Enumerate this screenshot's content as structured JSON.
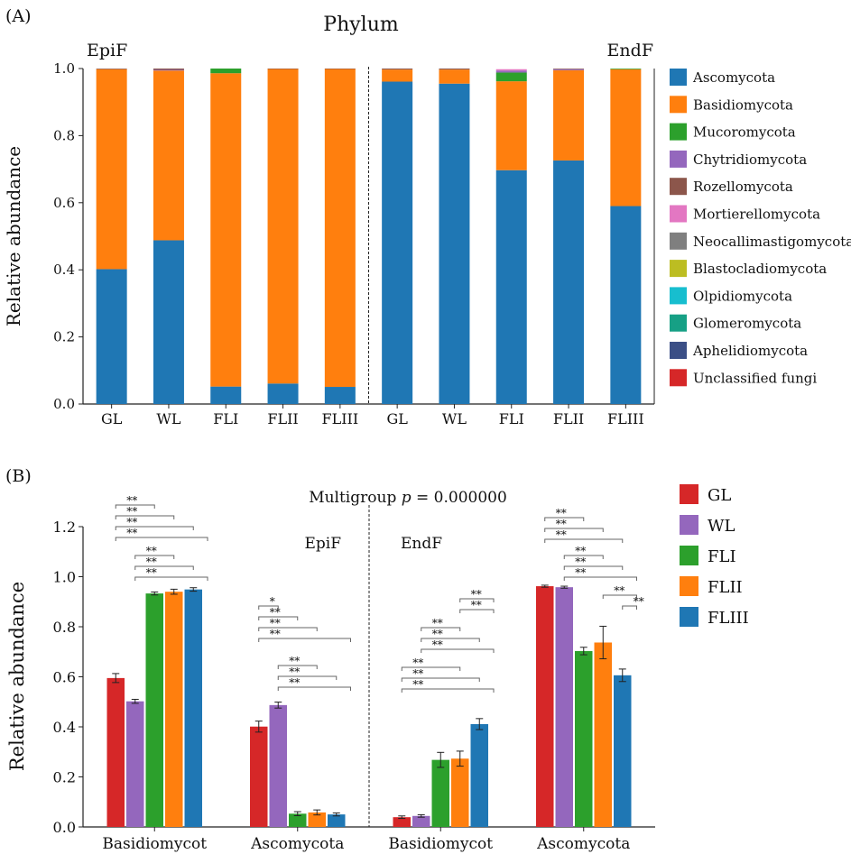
{
  "chart_data": [
    {
      "type": "bar",
      "stacked": true,
      "panel_label": "(A)",
      "title": "Phylum",
      "ylabel": "Relative abundance",
      "ylim": [
        0,
        1
      ],
      "yticks": [
        "0.0",
        "0.2",
        "0.4",
        "0.6",
        "0.8",
        "1.0"
      ],
      "groups": [
        {
          "name": "EpiF",
          "categories": [
            "GL",
            "WL",
            "FLI",
            "FLII",
            "FLIII"
          ]
        },
        {
          "name": "EndF",
          "categories": [
            "GL",
            "WL",
            "FLI",
            "FLII",
            "FLIII"
          ]
        }
      ],
      "legend": [
        {
          "name": "Ascomycota",
          "color": "#1f77b4"
        },
        {
          "name": "Basidiomycota",
          "color": "#ff7f0e"
        },
        {
          "name": "Mucoromycota",
          "color": "#2ca02c"
        },
        {
          "name": "Chytridiomycota",
          "color": "#9467bd"
        },
        {
          "name": "Rozellomycota",
          "color": "#8c564b"
        },
        {
          "name": "Mortierellomycota",
          "color": "#e377c2"
        },
        {
          "name": "Neocallimastigomycota",
          "color": "#7f7f7f"
        },
        {
          "name": "Blastocladiomycota",
          "color": "#bcbd22"
        },
        {
          "name": "Olpidiomycota",
          "color": "#17becf"
        },
        {
          "name": "Glomeromycota",
          "color": "#16a085"
        },
        {
          "name": "Aphelidiomycota",
          "color": "#3b4f86"
        },
        {
          "name": "Unclassified fungi",
          "color": "#d62728"
        }
      ],
      "bars": [
        {
          "group": "EpiF",
          "category": "GL",
          "segments": [
            0.402,
            0.596,
            0,
            0,
            0.002
          ]
        },
        {
          "group": "EpiF",
          "category": "WL",
          "segments": [
            0.488,
            0.506,
            0,
            0.002,
            0.004
          ]
        },
        {
          "group": "EpiF",
          "category": "FLI",
          "segments": [
            0.052,
            0.934,
            0.014
          ]
        },
        {
          "group": "EpiF",
          "category": "FLII",
          "segments": [
            0.061,
            0.938,
            0,
            0,
            0.001
          ]
        },
        {
          "group": "EpiF",
          "category": "FLIII",
          "segments": [
            0.051,
            0.948,
            0,
            0,
            0.001
          ]
        },
        {
          "group": "EndF",
          "category": "GL",
          "segments": [
            0.961,
            0.036,
            0,
            0,
            0.003
          ]
        },
        {
          "group": "EndF",
          "category": "WL",
          "segments": [
            0.955,
            0.042,
            0,
            0,
            0.003
          ]
        },
        {
          "group": "EndF",
          "category": "FLI",
          "segments": [
            0.697,
            0.265,
            0.026,
            0.006,
            0,
            0.004
          ]
        },
        {
          "group": "EndF",
          "category": "FLII",
          "segments": [
            0.726,
            0.269,
            0,
            0.003,
            0.002
          ]
        },
        {
          "group": "EndF",
          "category": "FLIII",
          "segments": [
            0.59,
            0.408,
            0.002
          ]
        }
      ]
    },
    {
      "type": "bar",
      "panel_label": "(B)",
      "title": "Multigroup",
      "title_p": "p",
      "title_value": " = 0.000000",
      "ylabel": "Relative abundance",
      "ylim": [
        0,
        1.2
      ],
      "yticks": [
        "0.0",
        "0.2",
        "0.4",
        "0.6",
        "0.8",
        "1.0",
        "1.2"
      ],
      "section_labels": [
        "EpiF",
        "EndF"
      ],
      "categories": [
        "Basidiomycot",
        "Ascomycota",
        "Basidiomycot",
        "Ascomycota"
      ],
      "series": [
        {
          "name": "GL",
          "color": "#d62728",
          "values": [
            0.595,
            0.401,
            0.039,
            0.962
          ],
          "errors": [
            0.018,
            0.022,
            0.005,
            0.004
          ]
        },
        {
          "name": "WL",
          "color": "#9467bd",
          "values": [
            0.502,
            0.487,
            0.044,
            0.958
          ],
          "errors": [
            0.008,
            0.012,
            0.005,
            0.004
          ]
        },
        {
          "name": "FLI",
          "color": "#2ca02c",
          "values": [
            0.933,
            0.053,
            0.268,
            0.703
          ],
          "errors": [
            0.006,
            0.008,
            0.03,
            0.015
          ]
        },
        {
          "name": "FLII",
          "color": "#ff7f0e",
          "values": [
            0.94,
            0.058,
            0.273,
            0.737
          ],
          "errors": [
            0.01,
            0.01,
            0.03,
            0.065
          ]
        },
        {
          "name": "FLIII",
          "color": "#1f77b4",
          "values": [
            0.949,
            0.05,
            0.411,
            0.606
          ],
          "errors": [
            0.007,
            0.006,
            0.022,
            0.025
          ]
        }
      ],
      "significance": [
        {
          "category": 0,
          "from": 0,
          "to": 2,
          "label": "**"
        },
        {
          "category": 0,
          "from": 0,
          "to": 3,
          "label": "**"
        },
        {
          "category": 0,
          "from": 0,
          "to": 4,
          "label": "**"
        },
        {
          "category": 0,
          "from": 0,
          "to": 5,
          "label": "**"
        },
        {
          "category": 0,
          "from": 1,
          "to": 3,
          "label": "**"
        },
        {
          "category": 0,
          "from": 1,
          "to": 4,
          "label": "**"
        },
        {
          "category": 0,
          "from": 1,
          "to": 5,
          "label": "**"
        },
        {
          "category": 1,
          "from": 0,
          "to": 1,
          "label": "*"
        },
        {
          "category": 1,
          "from": 0,
          "to": 2,
          "label": "**"
        },
        {
          "category": 1,
          "from": 0,
          "to": 3,
          "label": "**"
        },
        {
          "category": 1,
          "from": 0,
          "to": 5,
          "label": "**"
        },
        {
          "category": 1,
          "from": 1,
          "to": 3,
          "label": "**"
        },
        {
          "category": 1,
          "from": 1,
          "to": 4,
          "label": "**"
        },
        {
          "category": 1,
          "from": 1,
          "to": 5,
          "label": "**"
        },
        {
          "category": 2,
          "from": 3,
          "to": 5,
          "label": "**"
        },
        {
          "category": 2,
          "from": 3,
          "to": 5,
          "label": "**"
        },
        {
          "category": 2,
          "from": 1,
          "to": 3,
          "label": "**"
        },
        {
          "category": 2,
          "from": 1,
          "to": 4,
          "label": "**"
        },
        {
          "category": 2,
          "from": 1,
          "to": 5,
          "label": "**"
        },
        {
          "category": 2,
          "from": 0,
          "to": 3,
          "label": "**"
        },
        {
          "category": 2,
          "from": 0,
          "to": 4,
          "label": "**"
        },
        {
          "category": 2,
          "from": 0,
          "to": 5,
          "label": "**"
        },
        {
          "category": 3,
          "from": 0,
          "to": 2,
          "label": "**"
        },
        {
          "category": 3,
          "from": 0,
          "to": 3,
          "label": "**"
        },
        {
          "category": 3,
          "from": 0,
          "to": 4,
          "label": "**"
        },
        {
          "category": 3,
          "from": 1,
          "to": 3,
          "label": "**"
        },
        {
          "category": 3,
          "from": 1,
          "to": 4,
          "label": "**"
        },
        {
          "category": 3,
          "from": 1,
          "to": 5,
          "label": "**"
        },
        {
          "category": 3,
          "from": 3,
          "to": 5,
          "label": "**"
        },
        {
          "category": 3,
          "from": 4,
          "to": 5,
          "label": "**"
        }
      ]
    }
  ]
}
